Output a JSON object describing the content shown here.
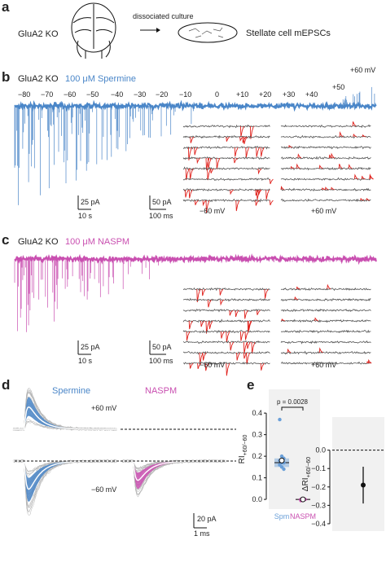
{
  "a": {
    "label": "a",
    "genotype": "GluA2 KO",
    "arrow_text": "dissociated culture",
    "result": "Stellate cell mEPSCs"
  },
  "b": {
    "label": "b",
    "genotype": "GluA2 KO",
    "drug": "100 μM Spermine",
    "voltages": [
      "−80",
      "−70",
      "−60",
      "−50",
      "−40",
      "−30",
      "−20",
      "−10",
      "0",
      "+10",
      "+20",
      "+30",
      "+40",
      "+50",
      "+60 mV"
    ],
    "scale_left": [
      "25 pA",
      "10 s"
    ],
    "scale_right": [
      "50 pA",
      "100 ms"
    ],
    "left_voltage": "−60 mV",
    "right_voltage": "+60 mV"
  },
  "c": {
    "label": "c",
    "genotype": "GluA2 KO",
    "drug": "100 μM NASPM",
    "scale_left": [
      "25 pA",
      "10 s"
    ],
    "scale_right": [
      "50 pA",
      "100 ms"
    ],
    "left_voltage": "−60 mV",
    "right_voltage": "+60 mV"
  },
  "d": {
    "label": "d",
    "left_title": "Spermine",
    "right_title": "NASPM",
    "upper_voltage": "+60 mV",
    "lower_voltage": "−60 mV",
    "scale": [
      "20 pA",
      "1 ms"
    ]
  },
  "e": {
    "label": "e"
  },
  "chart_data": [
    {
      "type": "box",
      "ylabel": "RI",
      "ylabel_sub": "+60/−60",
      "annotation": "p = 0.0028",
      "categories": [
        "Spm",
        "NASPM"
      ],
      "groups": [
        {
          "color": "#6a9fd8",
          "values": [
            0.37,
            0.2,
            0.19,
            0.18,
            0.17,
            0.17,
            0.16,
            0.15,
            0.14
          ],
          "box": {
            "q1": 0.15,
            "median": 0.17,
            "q3": 0.19
          },
          "mean": 0.18
        },
        {
          "color": "#c94fb0",
          "values": [
            0.0,
            0.0,
            0.0,
            -0.005
          ],
          "box": {
            "q1": -0.003,
            "median": 0.0,
            "q3": 0.002
          },
          "mean": 0.0
        }
      ],
      "ylim": [
        -0.045,
        0.51
      ],
      "yticks": [
        {
          "value": 0,
          "label": "0.0"
        },
        0.1,
        0.2,
        0.3,
        0.4
      ]
    },
    {
      "type": "errorbar",
      "ylabel": "ΔRI",
      "ylabel_sub": "+60/−60",
      "values": [
        -0.19
      ],
      "errors": [
        0.1
      ],
      "reference_line": 0,
      "ylim": [
        -0.44,
        0.18
      ],
      "yticks": [
        {
          "value": 0,
          "label": "0.0"
        },
        {
          "value": -0.1,
          "label": "−0.1"
        },
        {
          "value": -0.2,
          "label": "−0.2"
        },
        {
          "value": -0.3,
          "label": "−0.3"
        },
        {
          "value": -0.4,
          "label": "−0.4"
        }
      ]
    }
  ]
}
